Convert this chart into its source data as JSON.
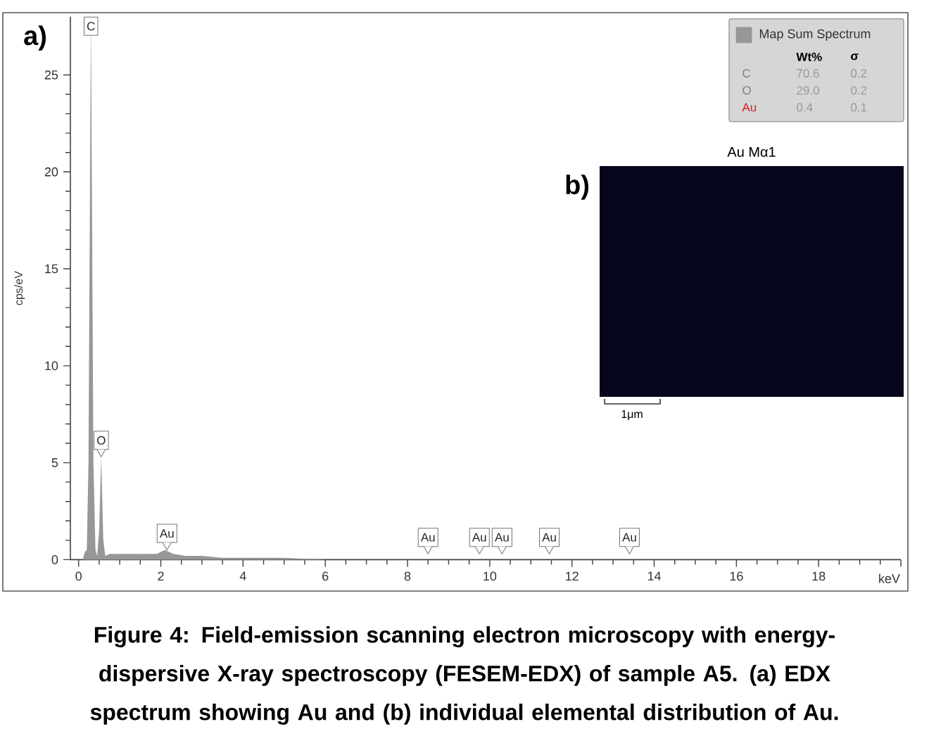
{
  "chart_data": {
    "type": "area",
    "xlabel": "keV",
    "ylabel": "cps/eV",
    "xlim": [
      -0.2,
      20
    ],
    "ylim": [
      0,
      28
    ],
    "xticks": [
      0,
      2,
      4,
      6,
      8,
      10,
      12,
      14,
      16,
      18,
      {
        "value": 20,
        "label": null
      }
    ],
    "yticks": [
      0,
      5,
      10,
      15,
      20,
      25
    ],
    "legend": "top right",
    "x": [
      0.1,
      0.15,
      0.2,
      0.24,
      0.3,
      0.36,
      0.41,
      0.45,
      0.5,
      0.55,
      0.6,
      0.65,
      0.75,
      1.0,
      1.5,
      1.9,
      2.1,
      2.3,
      2.6,
      3.0,
      3.5,
      4.0,
      5.0,
      6.0,
      20.0
    ],
    "series": [
      {
        "name": "Map Sum Spectrum",
        "color": "#979797",
        "values": [
          0,
          0.4,
          0.5,
          5,
          28,
          5,
          0.5,
          0.2,
          1.5,
          5.3,
          1.0,
          0.2,
          0.3,
          0.3,
          0.3,
          0.3,
          0.5,
          0.3,
          0.2,
          0.2,
          0.1,
          0.1,
          0.1,
          0,
          0
        ]
      }
    ],
    "annotations": [
      {
        "text": "C",
        "x": 0.3,
        "y": 28
      },
      {
        "text": "O",
        "x": 0.55,
        "y": 5.3
      },
      {
        "text": "Au",
        "x": 2.15,
        "y": 0.5
      },
      {
        "text": "Au",
        "x": 8.5,
        "y": 0.3
      },
      {
        "text": "Au",
        "x": 9.75,
        "y": 0.3
      },
      {
        "text": "Au",
        "x": 10.3,
        "y": 0.3
      },
      {
        "text": "Au",
        "x": 11.45,
        "y": 0.3
      },
      {
        "text": "Au",
        "x": 13.4,
        "y": 0.3
      },
      "a)",
      "b)",
      "Au Mα1",
      "1μm",
      "Wt%",
      "σ",
      "C",
      "70.6",
      "0.2",
      "O",
      "29.0",
      "0.2",
      "Au",
      "0.4",
      "0.1",
      "Figure 4: Field-emission scanning electron microscopy with energy-dispersive X-ray spectroscopy (FESEM-EDX) of sample A5. (a) EDX spectrum showing Au and (b) individual elemental distribution of Au."
    ]
  }
}
